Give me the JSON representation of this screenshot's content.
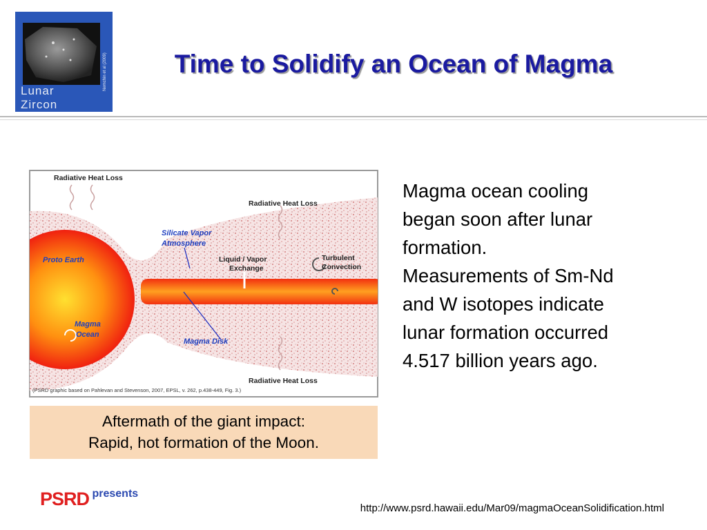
{
  "logo": {
    "line1": "Lunar",
    "line2": "Zircon",
    "credit": "Nemchin et al (2009)"
  },
  "title": "Time to Solidify an Ocean of Magma",
  "figure": {
    "labels": {
      "heat_loss_top_left": "Radiative Heat Loss",
      "heat_loss_top_right": "Radiative Heat Loss",
      "heat_loss_bottom": "Radiative Heat Loss",
      "silicate_vapor": [
        "Silicate Vapor",
        "Atmosphere"
      ],
      "proto_earth": "Proto Earth",
      "exchange": [
        "Liquid / Vapor",
        "Exchange"
      ],
      "convection": [
        "Turbulent",
        "Convection"
      ],
      "magma_ocean": [
        "Magma",
        "Ocean"
      ],
      "magma_disk": "Magma Disk"
    },
    "source": "(PSRD graphic based on Pahlevan and Stevenson, 2007, EPSL, v. 262, p.438-449, Fig. 3.)"
  },
  "caption": [
    "Aftermath of the giant impact:",
    "Rapid, hot formation of the Moon."
  ],
  "body": [
    "Magma ocean cooling",
    "began soon after lunar",
    "formation.",
    "Measurements of Sm-Nd",
    "and W isotopes indicate",
    "lunar formation occurred",
    "4.517 billion years ago."
  ],
  "footer": {
    "brand": "PSRD",
    "presents": "presents",
    "url": "http://www.psrd.hawaii.edu/Mar09/magmaOceanSolidification.html"
  }
}
